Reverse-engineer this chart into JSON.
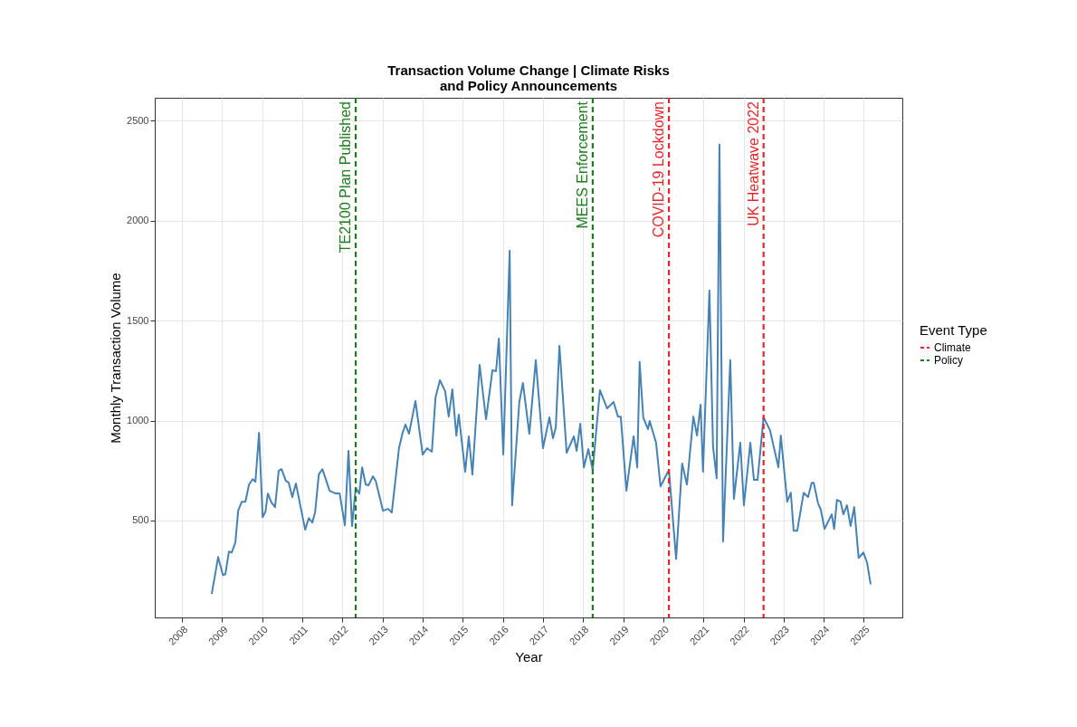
{
  "chart_data": {
    "type": "line",
    "title": "Transaction Volume Change | Climate Risks\nand Policy Announcements",
    "xlabel": "Year",
    "ylabel": "Monthly Transaction Volume",
    "legend_title": "Event Type",
    "legend": "right",
    "grid": true,
    "xlim": [
      2007.32,
      2025.96
    ],
    "ylim": [
      15,
      2615
    ],
    "xticks": [
      2008,
      2009,
      2010,
      2011,
      2012,
      2013,
      2014,
      2015,
      2016,
      2017,
      2018,
      2019,
      2020,
      2021,
      2022,
      2023,
      2024,
      2025
    ],
    "yticks": [
      500,
      1000,
      1500,
      2000,
      2500
    ],
    "series": [
      {
        "color": "#4682b4",
        "line_style": "solid",
        "x": [
          2008.74,
          2008.9,
          2009.02,
          2009.08,
          2009.17,
          2009.24,
          2009.33,
          2009.4,
          2009.49,
          2009.58,
          2009.67,
          2009.76,
          2009.83,
          2009.92,
          2010.01,
          2010.08,
          2010.14,
          2010.23,
          2010.32,
          2010.41,
          2010.48,
          2010.59,
          2010.66,
          2010.75,
          2010.84,
          2011.07,
          2011.16,
          2011.25,
          2011.32,
          2011.41,
          2011.5,
          2011.68,
          2011.83,
          2011.93,
          2012.06,
          2012.15,
          2012.24,
          2012.33,
          2012.42,
          2012.49,
          2012.58,
          2012.65,
          2012.76,
          2012.83,
          2013.01,
          2013.14,
          2013.23,
          2013.41,
          2013.5,
          2013.57,
          2013.66,
          2013.82,
          2014.0,
          2014.11,
          2014.23,
          2014.32,
          2014.43,
          2014.56,
          2014.65,
          2014.74,
          2014.84,
          2014.9,
          2015.06,
          2015.15,
          2015.24,
          2015.42,
          2015.58,
          2015.74,
          2015.83,
          2015.9,
          2016.01,
          2016.17,
          2016.23,
          2016.41,
          2016.5,
          2016.66,
          2016.82,
          2017.0,
          2017.16,
          2017.25,
          2017.32,
          2017.41,
          2017.59,
          2017.77,
          2017.84,
          2017.93,
          2018.02,
          2018.13,
          2018.24,
          2018.42,
          2018.6,
          2018.76,
          2018.87,
          2018.94,
          2019.08,
          2019.26,
          2019.35,
          2019.41,
          2019.5,
          2019.62,
          2019.66,
          2019.82,
          2019.93,
          2020.14,
          2020.32,
          2020.47,
          2020.59,
          2020.75,
          2020.84,
          2020.93,
          2020.99,
          2021.15,
          2021.24,
          2021.33,
          2021.4,
          2021.49,
          2021.67,
          2021.76,
          2021.92,
          2022.01,
          2022.17,
          2022.26,
          2022.35,
          2022.5,
          2022.66,
          2022.87,
          2022.93,
          2023.09,
          2023.18,
          2023.25,
          2023.34,
          2023.5,
          2023.61,
          2023.7,
          2023.75,
          2023.86,
          2023.93,
          2024.02,
          2024.2,
          2024.26,
          2024.33,
          2024.42,
          2024.49,
          2024.58,
          2024.67,
          2024.76,
          2024.87,
          2024.99,
          2025.08,
          2025.17
        ],
        "values": [
          132,
          317,
          227,
          231,
          345,
          340,
          390,
          549,
          594,
          594,
          680,
          707,
          694,
          939,
          517,
          544,
          635,
          590,
          567,
          748,
          757,
          698,
          689,
          617,
          685,
          454,
          512,
          490,
          544,
          730,
          757,
          649,
          635,
          635,
          476,
          848,
          472,
          662,
          635,
          766,
          680,
          676,
          721,
          698,
          549,
          558,
          540,
          862,
          939,
          980,
          934,
          1098,
          830,
          862,
          844,
          1116,
          1202,
          1147,
          1020,
          1156,
          925,
          1030,
          744,
          921,
          730,
          1279,
          1007,
          1252,
          1247,
          1410,
          830,
          1850,
          576,
          1093,
          1188,
          934,
          1302,
          862,
          1016,
          912,
          966,
          1374,
          839,
          921,
          848,
          984,
          766,
          857,
          753,
          1152,
          1061,
          1093,
          1020,
          1020,
          649,
          921,
          766,
          1293,
          1016,
          957,
          998,
          889,
          671,
          753,
          308,
          785,
          680,
          1020,
          925,
          1079,
          744,
          1651,
          871,
          712,
          2381,
          395,
          1302,
          608,
          889,
          576,
          889,
          703,
          703,
          1016,
          952,
          766,
          925,
          594,
          639,
          449,
          449,
          639,
          617,
          689,
          689,
          585,
          553,
          458,
          531,
          458,
          603,
          594,
          531,
          576,
          472,
          567,
          313,
          340,
          290,
          181
        ]
      }
    ],
    "ref_lines": [
      {
        "axis": "x",
        "value": 2020.14,
        "label": "COVID-19 Lockdown",
        "color": "#e8262a",
        "line_style": "dashed"
      },
      {
        "axis": "x",
        "value": 2022.5,
        "label": "UK Heatwave 2022",
        "color": "#e8262a",
        "line_style": "dashed"
      },
      {
        "axis": "x",
        "value": 2012.33,
        "label": "TE2100 Plan Published",
        "color": "#1e7b1e",
        "line_style": "dashed"
      },
      {
        "axis": "x",
        "value": 2018.24,
        "label": "MEES Enforcement",
        "color": "#1e7b1e",
        "line_style": "dashed"
      }
    ],
    "annotations": [
      "Climate",
      "Policy"
    ]
  }
}
